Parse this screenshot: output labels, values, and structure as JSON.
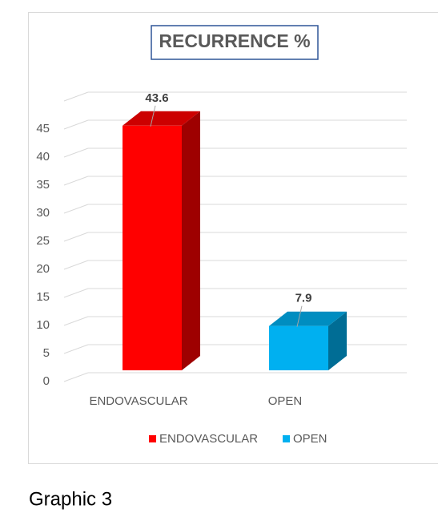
{
  "chart_data": {
    "type": "bar3d",
    "title": "RECURRENCE %",
    "categories": [
      "ENDOVASCULAR",
      "OPEN"
    ],
    "series": [
      {
        "name": "ENDOVASCULAR",
        "color": "#ff0000"
      },
      {
        "name": "OPEN",
        "color": "#00b0f0"
      }
    ],
    "values": [
      43.6,
      7.9
    ],
    "ylim": [
      0,
      50
    ],
    "yticks": [
      0,
      5,
      10,
      15,
      20,
      25,
      30,
      35,
      40,
      45
    ],
    "grid": true,
    "legend": "bottom"
  },
  "caption": "Graphic 3"
}
